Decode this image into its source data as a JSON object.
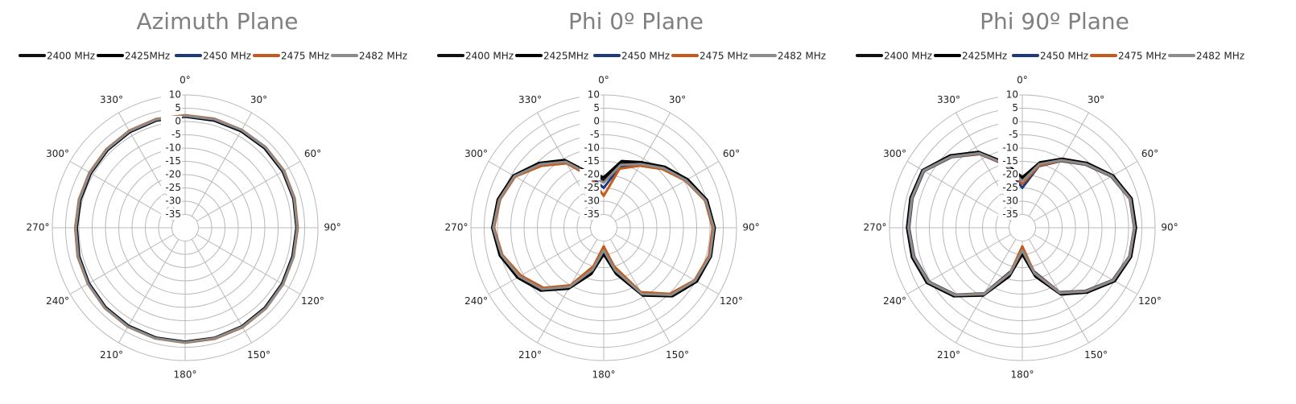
{
  "chart_data": [
    {
      "type": "polar",
      "title": "Azimuth Plane",
      "x": [
        0,
        15,
        30,
        45,
        60,
        75,
        90,
        105,
        120,
        135,
        150,
        165,
        180,
        195,
        210,
        225,
        240,
        255,
        270,
        285,
        300,
        315,
        330,
        345
      ],
      "rlim": [
        -40,
        10
      ],
      "rticks": [
        10,
        5,
        0,
        -5,
        -10,
        -15,
        -20,
        -25,
        -30,
        -35
      ],
      "thetaticks": [
        {
          "value": 0,
          "label": "0°"
        },
        {
          "value": 30,
          "label": "30°"
        },
        {
          "value": 60,
          "label": "60°"
        },
        {
          "value": 90,
          "label": "90°"
        },
        {
          "value": 120,
          "label": "120°"
        },
        {
          "value": 150,
          "label": "150°"
        },
        {
          "value": 180,
          "label": "180°"
        },
        {
          "value": 210,
          "label": "210°"
        },
        {
          "value": 240,
          "label": "240°"
        },
        {
          "value": 270,
          "label": "270°"
        },
        {
          "value": 300,
          "label": "300°"
        },
        {
          "value": 330,
          "label": "330°"
        }
      ],
      "series": [
        {
          "name": "2400 MHz",
          "color": "#111111",
          "values": [
            2,
            2,
            2.2,
            2.5,
            2.5,
            2.3,
            2,
            2,
            2.3,
            2.7,
            3,
            3,
            3,
            3,
            2.8,
            2.5,
            2,
            1.5,
            1,
            1,
            1.2,
            1.5,
            1.8,
            2
          ]
        },
        {
          "name": "2425MHz",
          "color": "#000000",
          "values": [
            1.8,
            1.8,
            2,
            2.3,
            2.4,
            2.2,
            1.9,
            1.8,
            2.1,
            2.5,
            2.8,
            2.9,
            2.9,
            2.8,
            2.6,
            2.3,
            1.8,
            1.3,
            0.8,
            0.8,
            1,
            1.3,
            1.6,
            1.8
          ]
        },
        {
          "name": "2450 MHz",
          "color": "#1f3a7a",
          "values": [
            2.1,
            2.2,
            2.4,
            2.7,
            2.8,
            2.6,
            2.2,
            2.1,
            2.4,
            2.8,
            3.1,
            3.2,
            3.1,
            3.1,
            2.9,
            2.6,
            2.1,
            1.6,
            1.1,
            1.2,
            1.4,
            1.7,
            2,
            2.1
          ]
        },
        {
          "name": "2475 MHz",
          "color": "#c55a1c",
          "values": [
            2.4,
            2.5,
            2.6,
            2.9,
            3,
            2.7,
            2.4,
            2.3,
            2.6,
            3,
            3.3,
            3.3,
            3.3,
            3.2,
            3.1,
            2.8,
            2.3,
            1.9,
            1.4,
            1.4,
            1.6,
            1.9,
            2.2,
            2.4
          ]
        },
        {
          "name": "2482 MHz",
          "color": "#8c8c8c",
          "values": [
            2.2,
            2.3,
            2.5,
            2.8,
            2.8,
            2.5,
            2.2,
            2.2,
            2.5,
            2.9,
            3.1,
            3.1,
            3.2,
            3.1,
            3,
            2.7,
            2.2,
            1.7,
            1.2,
            1.2,
            1.4,
            1.7,
            2,
            2.2
          ]
        }
      ]
    },
    {
      "type": "polar",
      "title": "Phi 0º Plane",
      "x": [
        0,
        15,
        30,
        45,
        60,
        75,
        90,
        105,
        120,
        135,
        150,
        165,
        180,
        195,
        210,
        225,
        240,
        255,
        270,
        285,
        300,
        315,
        330,
        345
      ],
      "rlim": [
        -40,
        10
      ],
      "rticks": [
        10,
        5,
        0,
        -5,
        -10,
        -15,
        -20,
        -25,
        -30,
        -35
      ],
      "thetaticks": [
        {
          "value": 0,
          "label": "0°"
        },
        {
          "value": 30,
          "label": "30°"
        },
        {
          "value": 60,
          "label": "60°"
        },
        {
          "value": 90,
          "label": "90°"
        },
        {
          "value": 120,
          "label": "120°"
        },
        {
          "value": 150,
          "label": "150°"
        },
        {
          "value": 180,
          "label": "180°"
        },
        {
          "value": 210,
          "label": "210°"
        },
        {
          "value": 240,
          "label": "240°"
        },
        {
          "value": 270,
          "label": "270°"
        },
        {
          "value": 300,
          "label": "300°"
        },
        {
          "value": 330,
          "label": "330°"
        }
      ],
      "series": [
        {
          "name": "2400 MHz",
          "color": "#111111",
          "values": [
            -22,
            -15,
            -12,
            -8,
            -4,
            0,
            1.5,
            1.5,
            0,
            -4,
            -11,
            -23,
            -31,
            -23,
            -14,
            -7,
            -3,
            0,
            1.8,
            1,
            -1,
            -6,
            -11,
            -19
          ]
        },
        {
          "name": "2425MHz",
          "color": "#000000",
          "values": [
            -21,
            -14,
            -11.5,
            -7.5,
            -3.5,
            0.3,
            1.8,
            1.8,
            0.5,
            -3.5,
            -10.5,
            -22,
            -30,
            -22,
            -13.5,
            -6.5,
            -2.5,
            0.5,
            2,
            1.3,
            -0.7,
            -5.5,
            -10.5,
            -18.5
          ]
        },
        {
          "name": "2450 MHz",
          "color": "#1f3a7a",
          "values": [
            -25,
            -16,
            -12.5,
            -8.5,
            -4.5,
            -0.3,
            1.2,
            1.2,
            -0.3,
            -4.5,
            -11.5,
            -24,
            -32,
            -24,
            -14.5,
            -7.5,
            -3.5,
            -0.3,
            1.5,
            0.7,
            -1.3,
            -6.5,
            -11.5,
            -19.5
          ]
        },
        {
          "name": "2475 MHz",
          "color": "#c55a1c",
          "values": [
            -28,
            -17,
            -13,
            -8.8,
            -4.5,
            -0.5,
            1,
            1,
            -0.5,
            -4.8,
            -12,
            -25,
            -33,
            -25,
            -15,
            -8,
            -4,
            -0.5,
            1.3,
            0.5,
            -1.5,
            -7,
            -12,
            -20
          ]
        },
        {
          "name": "2482 MHz",
          "color": "#8c8c8c",
          "values": [
            -23,
            -15.5,
            -12.3,
            -8.2,
            -4.2,
            -0.2,
            1.4,
            1.4,
            -0.2,
            -4.2,
            -11.2,
            -23.5,
            -31.5,
            -23.5,
            -14.3,
            -7.3,
            -3.3,
            -0.2,
            1.6,
            0.8,
            -1.2,
            -6.2,
            -11.3,
            -19.2
          ]
        }
      ]
    },
    {
      "type": "polar",
      "title": "Phi 90º Plane",
      "x": [
        0,
        15,
        30,
        45,
        60,
        75,
        90,
        105,
        120,
        135,
        150,
        165,
        180,
        195,
        210,
        225,
        240,
        255,
        270,
        285,
        300,
        315,
        330,
        345
      ],
      "rlim": [
        -40,
        10
      ],
      "rticks": [
        10,
        5,
        0,
        -5,
        -10,
        -15,
        -20,
        -25,
        -30,
        -35
      ],
      "thetaticks": [
        {
          "value": 0,
          "label": "0°"
        },
        {
          "value": 30,
          "label": "30°"
        },
        {
          "value": 60,
          "label": "60°"
        },
        {
          "value": 90,
          "label": "90°"
        },
        {
          "value": 120,
          "label": "120°"
        },
        {
          "value": 150,
          "label": "150°"
        },
        {
          "value": 180,
          "label": "180°"
        },
        {
          "value": 210,
          "label": "210°"
        },
        {
          "value": 240,
          "label": "240°"
        },
        {
          "value": 270,
          "label": "270°"
        },
        {
          "value": 300,
          "label": "300°"
        },
        {
          "value": 330,
          "label": "330°"
        }
      ],
      "series": [
        {
          "name": "2400 MHz",
          "color": "#111111",
          "values": [
            -22,
            -15,
            -10.5,
            -6,
            -1,
            2.2,
            2.4,
            2,
            -0.3,
            -6,
            -11.5,
            -22,
            -31,
            -22,
            -11,
            -4,
            1,
            2.5,
            3,
            3.2,
            3,
            -2,
            -7.5,
            -15
          ]
        },
        {
          "name": "2425MHz",
          "color": "#000000",
          "values": [
            -21,
            -14.5,
            -10,
            -5.5,
            -0.6,
            2.6,
            2.8,
            2.4,
            0.2,
            -5.5,
            -11,
            -21,
            -30,
            -21,
            -10.5,
            -3.5,
            1.5,
            3,
            3.4,
            3.6,
            3.4,
            -1.5,
            -7,
            -14.5
          ]
        },
        {
          "name": "2450 MHz",
          "color": "#1f3a7a",
          "values": [
            -25,
            -16,
            -11,
            -6.4,
            -1.4,
            1.9,
            2.1,
            1.7,
            -0.7,
            -6.4,
            -12,
            -23,
            -32,
            -23,
            -11.5,
            -4.4,
            0.6,
            2.1,
            2.6,
            2.8,
            2.7,
            -2.4,
            -8,
            -15.5
          ]
        },
        {
          "name": "2475 MHz",
          "color": "#c55a1c",
          "values": [
            -23.5,
            -15.8,
            -10.8,
            -6.2,
            -1.2,
            2,
            2.2,
            1.8,
            -0.5,
            -6.2,
            -11.8,
            -22.5,
            -33,
            -22.5,
            -11.3,
            -4.2,
            0.8,
            2.3,
            2.8,
            3,
            2.9,
            -2.2,
            -7.8,
            -15.3
          ]
        },
        {
          "name": "2482 MHz",
          "color": "#8c8c8c",
          "values": [
            -22.5,
            -15.2,
            -10.6,
            -6.1,
            -1.1,
            2.1,
            2.3,
            1.9,
            -0.4,
            -6.1,
            -11.6,
            -22.2,
            -31.5,
            -22.2,
            -11.1,
            -4.1,
            0.9,
            2.4,
            2.9,
            3.1,
            3,
            -2.1,
            -7.6,
            -15.1
          ]
        }
      ]
    }
  ]
}
